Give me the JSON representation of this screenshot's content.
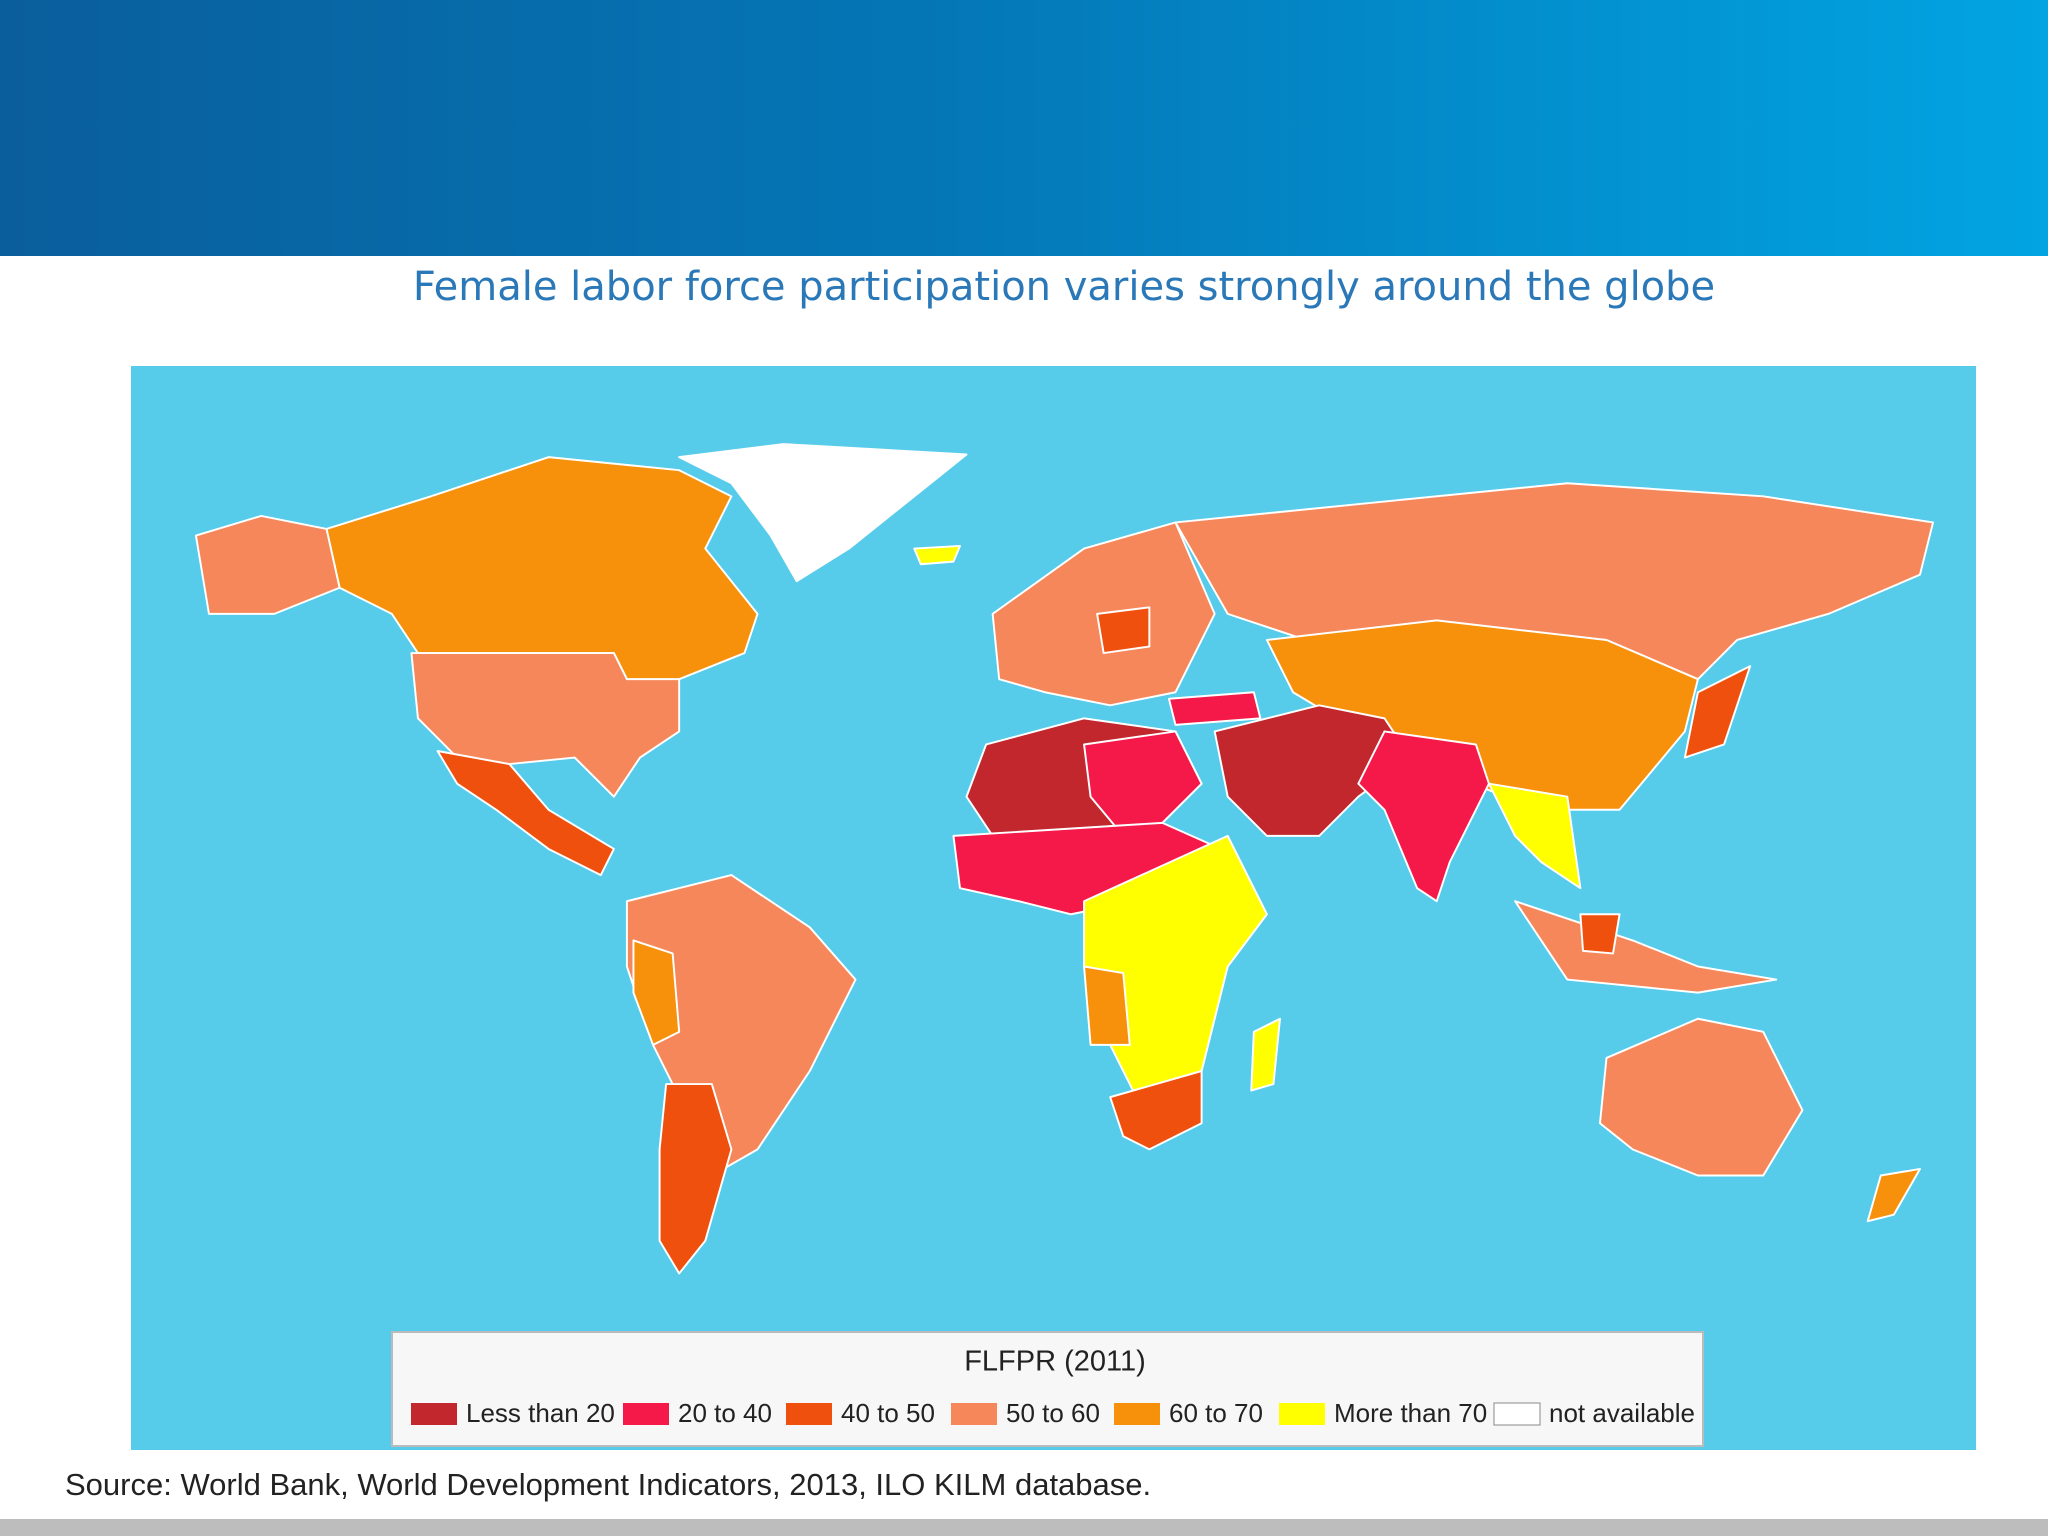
{
  "header": {
    "title": "Female labor force participation varies strongly around the globe"
  },
  "map": {
    "legend": {
      "title": "FLFPR (2011)",
      "items": [
        {
          "label": "Less than 20",
          "color": "#c1272d"
        },
        {
          "label": "20 to 40",
          "color": "#f5194a"
        },
        {
          "label": "40 to 50",
          "color": "#f0500e"
        },
        {
          "label": "50 to 60",
          "color": "#f5875a"
        },
        {
          "label": "60 to 70",
          "color": "#f7900a"
        },
        {
          "label": "More than 70",
          "color": "#ffff00"
        },
        {
          "label": "not available",
          "color": "#ffffff"
        }
      ]
    }
  },
  "footer": {
    "source": "Source: World Bank, World Development Indicators, 2013, ILO KILM database."
  }
}
